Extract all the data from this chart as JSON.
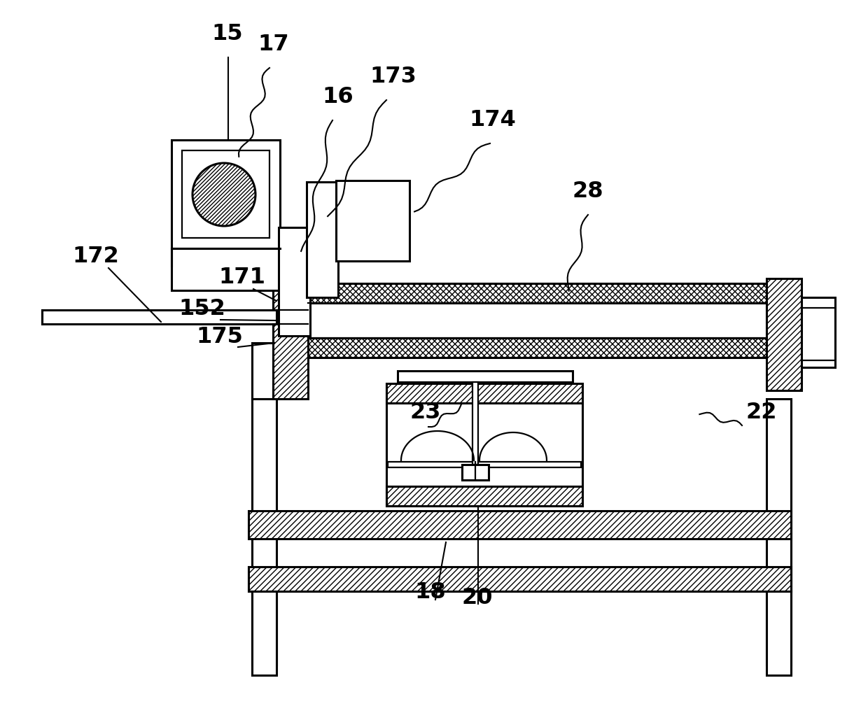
{
  "bg_color": "#ffffff",
  "line_color": "#000000",
  "figsize": [
    12.4,
    10.09
  ],
  "dpi": 100
}
